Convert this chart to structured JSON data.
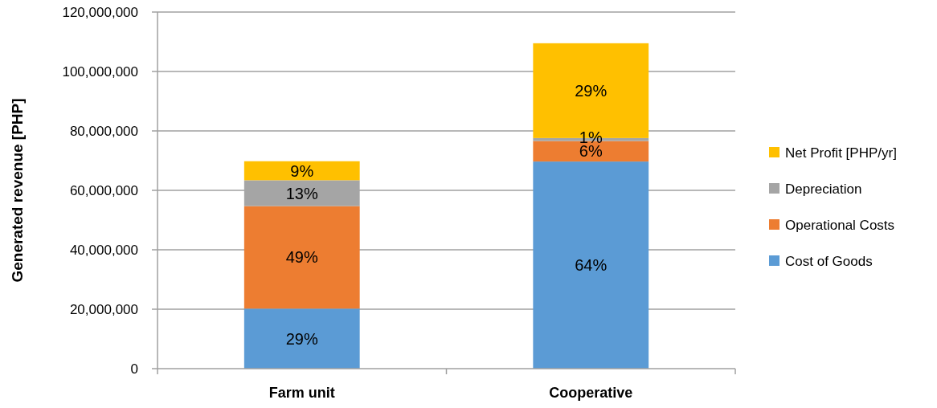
{
  "chart_data": {
    "type": "bar",
    "stacked": true,
    "ylabel": "Generated revenue [PHP]",
    "categories": [
      "Farm unit",
      "Cooperative"
    ],
    "series": [
      {
        "name": "Cost of Goods",
        "color": "#5b9bd5",
        "values": [
          20200000,
          69700000
        ]
      },
      {
        "name": "Operational Costs",
        "color": "#ed7d31",
        "values": [
          34500000,
          6900000
        ]
      },
      {
        "name": "Depreciation",
        "color": "#a5a5a5",
        "values": [
          8700000,
          1000000
        ]
      },
      {
        "name": "Net Profit [PHP/yr]",
        "color": "#ffc000",
        "values": [
          6400000,
          31900000
        ]
      }
    ],
    "annotations": [
      "29%",
      "49%",
      "13%",
      "9%",
      "64%",
      "6%",
      "1%",
      "29%"
    ],
    "ylim": [
      0,
      120000000
    ],
    "yticks": [
      {
        "value": 0,
        "label": "0"
      },
      {
        "value": 20000000,
        "label": "20,000,000"
      },
      {
        "value": 40000000,
        "label": "40,000,000"
      },
      {
        "value": 60000000,
        "label": "60,000,000"
      },
      {
        "value": 80000000,
        "label": "80,000,000"
      },
      {
        "value": 100000000,
        "label": "100,000,000"
      },
      {
        "value": 120000000,
        "label": "120,000,000"
      }
    ],
    "grid": "y",
    "legend": "right"
  }
}
